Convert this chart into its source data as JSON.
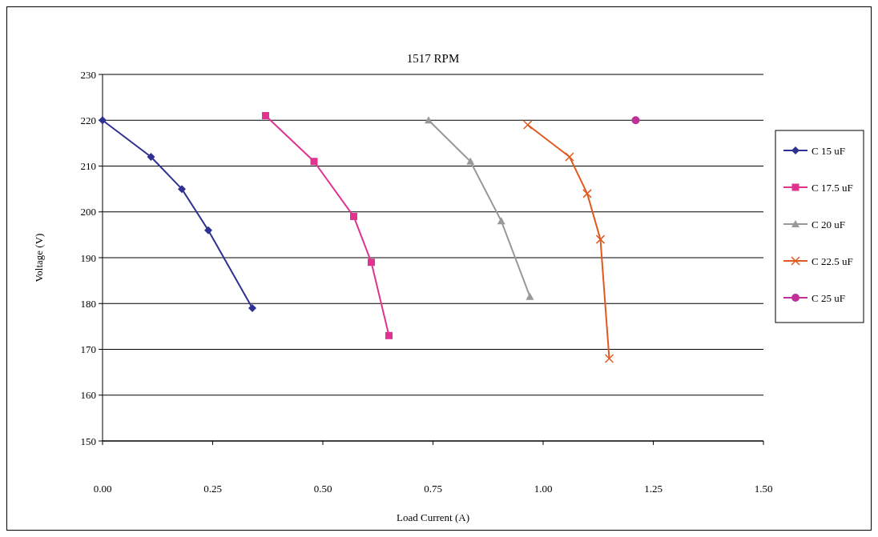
{
  "chart_data": {
    "type": "line",
    "title": "1517 RPM",
    "xlabel": "Load Current (A)",
    "ylabel": "Voltage (V)",
    "xlim": [
      0,
      1.5
    ],
    "xticks": [
      {
        "value": 0,
        "label": "0.00"
      },
      {
        "value": 0.25,
        "label": "0.25"
      },
      {
        "value": 0.5,
        "label": "0.50"
      },
      {
        "value": 0.75,
        "label": "0.75"
      },
      {
        "value": 1,
        "label": "1.00"
      },
      {
        "value": 1.25,
        "label": "1.25"
      },
      {
        "value": 1.5,
        "label": "1.50"
      }
    ],
    "ylim": [
      150,
      230
    ],
    "yticks": [
      150,
      160,
      170,
      180,
      190,
      200,
      210,
      220,
      230
    ],
    "grid": "y",
    "legend": "right",
    "series": [
      {
        "name": "C 15 uF",
        "color": "#2e3192",
        "marker": "diamond",
        "x": [
          0,
          0.11,
          0.18,
          0.24,
          0.34
        ],
        "values": [
          220,
          212,
          205,
          196,
          179
        ]
      },
      {
        "name": "C 17.5 uF",
        "color": "#e0338f",
        "marker": "square",
        "x": [
          0.37,
          0.48,
          0.57,
          0.61,
          0.65
        ],
        "values": [
          221,
          211,
          199,
          189,
          173
        ]
      },
      {
        "name": "C 20 uF",
        "color": "#999999",
        "marker": "triangle",
        "x": [
          0.74,
          0.835,
          0.905,
          0.97
        ],
        "values": [
          220,
          211,
          198,
          181.5
        ]
      },
      {
        "name": "C 22.5 uF",
        "color": "#e05a20",
        "marker": "cross",
        "x": [
          0.965,
          1.06,
          1.1,
          1.13,
          1.15
        ],
        "values": [
          219,
          212,
          204,
          194,
          168
        ]
      },
      {
        "name": "C 25 uF",
        "color": "#c0309a",
        "marker": "circle",
        "x": [
          1.21
        ],
        "values": [
          220
        ]
      }
    ]
  }
}
